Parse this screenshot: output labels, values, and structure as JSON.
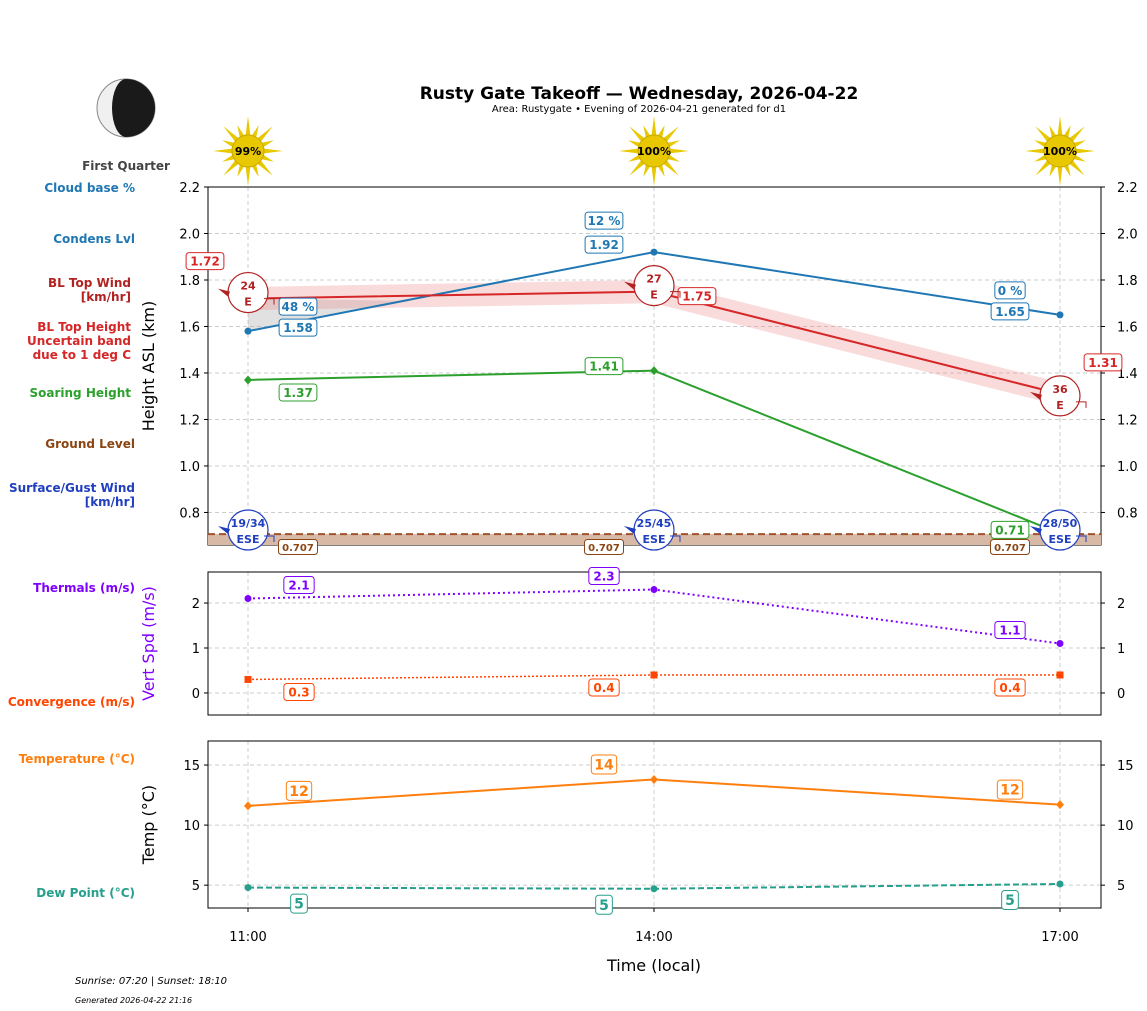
{
  "chart_data": {
    "type": "line",
    "title": "Rusty Gate Takeoff — Wednesday, 2026-04-22",
    "subtitle": "Area: Rustygate • Evening of 2026-04-21 generated for d1",
    "moon_phase": "First Quarter",
    "x": [
      "11:00",
      "14:00",
      "17:00"
    ],
    "xlabel": "Time (local)",
    "sun_percent": [
      "99%",
      "100%",
      "100%"
    ],
    "footer": {
      "sun": "Sunrise: 07:20 | Sunset: 18:10",
      "generated": "Generated 2026-04-22 21:16"
    },
    "colors": {
      "cloud": "#1f77b4",
      "bl": "#d62728",
      "soar": "#2ca02c",
      "ground": "#8b4513",
      "surface": "#1f3fbf",
      "thermal": "#8000ff",
      "conv": "#ff4500",
      "temp": "#ff7f0e",
      "dew": "#26a08c"
    },
    "panels": [
      {
        "ylabel": "Height ASL (km)",
        "ylim": [
          0.66,
          2.2
        ],
        "yticks": [
          0.8,
          1.0,
          1.2,
          1.4,
          1.6,
          1.8,
          2.0,
          2.2
        ],
        "side_labels": [
          "Cloud base %",
          "Condens Lvl",
          "BL Top Wind\n[km/hr]",
          "BL Top Height\nUncertain band\ndue to 1 deg C",
          "Soaring Height",
          "Ground Level",
          "Surface/Gust Wind\n[km/hr]"
        ],
        "condensation_level": [
          1.58,
          1.92,
          1.65
        ],
        "cloud_base_percent": [
          "48 %",
          "12 %",
          "0 %"
        ],
        "bl_top": [
          1.72,
          1.75,
          1.31
        ],
        "bl_band": 0.05,
        "bl_wind": [
          {
            "speed": "24",
            "dir": "E"
          },
          {
            "speed": "27",
            "dir": "E"
          },
          {
            "speed": "36",
            "dir": "E"
          }
        ],
        "soaring_height": [
          1.37,
          1.41,
          0.71
        ],
        "ground_level": [
          0.707,
          0.707,
          0.707
        ],
        "surface_wind": [
          {
            "speed": "19/34",
            "dir": "ESE"
          },
          {
            "speed": "25/45",
            "dir": "ESE"
          },
          {
            "speed": "28/50",
            "dir": "ESE"
          }
        ]
      },
      {
        "ylabel": "Vert Spd (m/s)",
        "ylim": [
          -0.49,
          2.69
        ],
        "yticks": [
          0,
          1,
          2
        ],
        "side_labels": [
          "Thermals (m/s)",
          "Convergence (m/s)"
        ],
        "thermals": [
          2.1,
          2.3,
          1.1
        ],
        "convergence": [
          0.3,
          0.4,
          0.4
        ]
      },
      {
        "ylabel": "Temp (°C)",
        "ylim": [
          3.1,
          17
        ],
        "yticks": [
          5,
          10,
          15
        ],
        "side_labels": [
          "Temperature (°C)",
          "Dew Point (°C)"
        ],
        "temperature": [
          11.6,
          13.8,
          11.7
        ],
        "temperature_labels": [
          "12",
          "14",
          "12"
        ],
        "dew_point": [
          4.8,
          4.7,
          5.1
        ],
        "dew_point_labels": [
          "5",
          "5",
          "5"
        ]
      }
    ]
  }
}
